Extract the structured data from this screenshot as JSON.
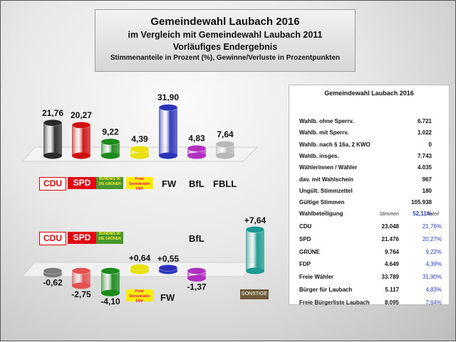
{
  "title": {
    "line1": "Gemeindewahl Laubach 2016",
    "line2": "im Vergleich mit Gemeindewahl Laubach 2011",
    "line3": "Vorläufiges Endergebnis",
    "line4": "Stimmenanteile in Prozent (%), Gewinne/Verluste in Prozentpunkten"
  },
  "colors": {
    "CDU": "#2a2a2a",
    "SPD": "#d01010",
    "GRUENE": "#1a8a1a",
    "FDP": "#e8e000",
    "FW": "#2b33b8",
    "BfL": "#b030c0",
    "FBLL": "#b8b8b8",
    "SONSTIGE": "#1a9a90",
    "NEG_CDU": "#7a7a7a",
    "NEG_SPD": "#e25050"
  },
  "chart_data": [
    {
      "type": "bar",
      "title": "",
      "categories": [
        "CDU",
        "SPD",
        "GRÜNE",
        "FDP",
        "FW",
        "BfL",
        "FBLL"
      ],
      "values": [
        21.76,
        20.27,
        9.22,
        4.39,
        31.9,
        4.83,
        7.64
      ],
      "value_labels": [
        "21,76",
        "20,27",
        "9,22",
        "4,39",
        "31,90",
        "4,83",
        "7,64"
      ],
      "ylim": [
        0,
        32
      ]
    },
    {
      "type": "bar",
      "title": "",
      "categories": [
        "CDU",
        "SPD",
        "GRÜNE",
        "FDP",
        "FW",
        "BfL",
        "SONSTIGE"
      ],
      "values": [
        -0.62,
        -2.75,
        -4.1,
        0.64,
        0.55,
        -1.37,
        7.64
      ],
      "value_labels": [
        "-0,62",
        "-2,75",
        "-4,10",
        "+0,64",
        "+0,55",
        "-1,37",
        "+7,64"
      ],
      "ylim": [
        -5,
        8
      ]
    }
  ],
  "logos": {
    "cdu": "CDU",
    "spd": "SPD",
    "gruene": "BÜNDNIS 90 DIE GRÜNEN",
    "fdp": "Freie Demokraten FDP",
    "fw": "FW",
    "bfl": "BfL",
    "fbll": "FBLL",
    "sonstige": "SONSTIGE"
  },
  "panel": {
    "title": "Gemeindewahl Laubach 2016",
    "stats": [
      {
        "label": "Wahlb. ohne Sperrv.",
        "value": "6.721"
      },
      {
        "label": "Wahlb. mit Sperrv.",
        "value": "1.022"
      },
      {
        "label": "Wahlb. nach § 16a, 2 KWO",
        "value": "0"
      },
      {
        "label": "Wahlb. insges.",
        "value": "7.743"
      },
      {
        "label": "Wählerinnen / Wähler",
        "value": "4.035"
      },
      {
        "label": "dav. mit Wahlschein",
        "value": "967"
      },
      {
        "label": "Ungült. Stimmzettel",
        "value": "180"
      },
      {
        "label": "Gültige Stimmen",
        "value": "105.938"
      },
      {
        "label": "Wahlbeteiligung",
        "value": "52,11%"
      }
    ],
    "col_stimmen": "Stimmen",
    "col_anteil": "Anteil",
    "parties": [
      {
        "label": "CDU",
        "stimmen": "23.048",
        "anteil": "21,76%"
      },
      {
        "label": "SPD",
        "stimmen": "21.476",
        "anteil": "20,27%"
      },
      {
        "label": "GRÜNE",
        "stimmen": "9.764",
        "anteil": "9,22%"
      },
      {
        "label": "FDP",
        "stimmen": "4.649",
        "anteil": "4,39%"
      },
      {
        "label": "Freie Wähler",
        "stimmen": "33.789",
        "anteil": "31,90%"
      },
      {
        "label": "Bürger für Laubach",
        "stimmen": "5.117",
        "anteil": "4,83%"
      },
      {
        "label": "Freie Bürgerliste Laubach",
        "stimmen": "8.095",
        "anteil": "7,64%"
      }
    ]
  }
}
